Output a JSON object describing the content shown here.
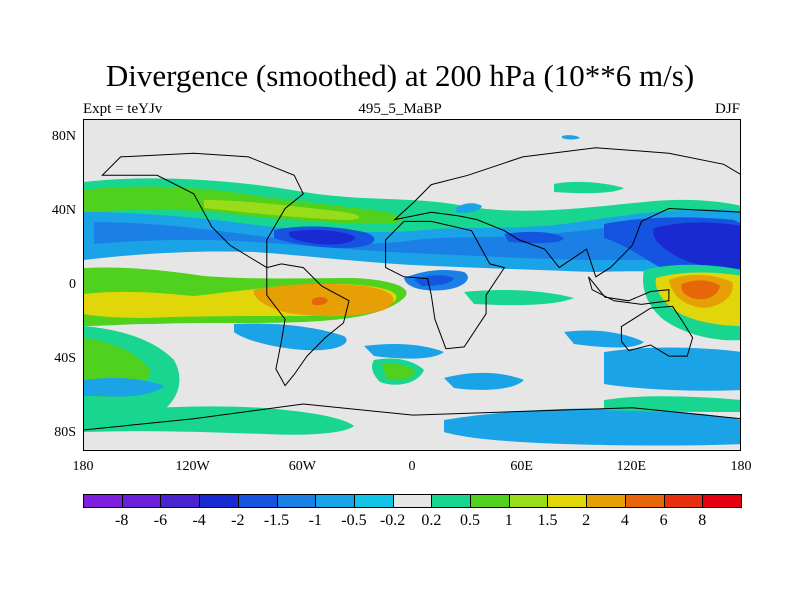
{
  "title": "Divergence (smoothed) at 200 hPa (10**6 m/s)",
  "subtitle_left": "Expt = teYJv",
  "subtitle_center": "495_5_MaBP",
  "subtitle_right": "DJF",
  "chart_data": {
    "type": "filled-contour-map",
    "title": "Divergence (smoothed) at 200 hPa (10**6 m/s)",
    "lon_range": [
      -180,
      180
    ],
    "lat_range": [
      -90,
      90
    ],
    "x_ticks": [
      "180",
      "120W",
      "60W",
      "0",
      "60E",
      "120E",
      "180"
    ],
    "y_ticks": [
      "80N",
      "40N",
      "0",
      "40S",
      "80S"
    ],
    "y_tick_lats": [
      80,
      40,
      0,
      -40,
      -80
    ],
    "x_tick_lons": [
      -180,
      -120,
      -60,
      0,
      60,
      120,
      180
    ],
    "colorbar": {
      "labels": [
        "-8",
        "-6",
        "-4",
        "-2",
        "-1.5",
        "-1",
        "-0.5",
        "-0.2",
        "0.2",
        "0.5",
        "1",
        "1.5",
        "2",
        "4",
        "6",
        "8"
      ],
      "colors": [
        "#7e1ee0",
        "#6a1fd8",
        "#4a25cf",
        "#1a2ad3",
        "#1454e0",
        "#1a80e6",
        "#1aa3e6",
        "#11c4e8",
        "#e6e6e6",
        "#18d690",
        "#4fd11e",
        "#99dd1a",
        "#e0d60a",
        "#e6a005",
        "#e8660a",
        "#e83010",
        "#e60010"
      ]
    }
  }
}
